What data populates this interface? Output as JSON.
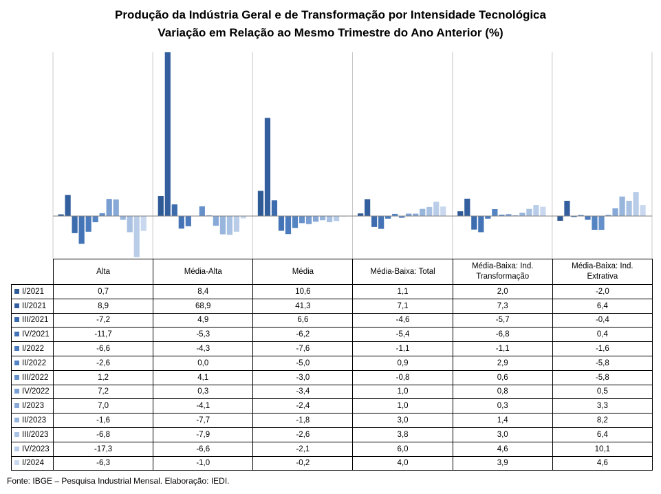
{
  "title_line1": "Produção da Indústria Geral e de Transformação por Intensidade Tecnológica",
  "title_line2": "Variação em Relação ao Mesmo Trimestre do Ano Anterior (%)",
  "source": "Fonte: IBGE – Pesquisa Industrial Mensal. Elaboração: IEDI.",
  "chart_data": {
    "type": "bar",
    "categories": [
      "Alta",
      "Média-Alta",
      "Média",
      "Média-Baixa: Total",
      "Média-Baixa: Ind. Transformação",
      "Média-Baixa: Ind. Extrativa"
    ],
    "periods": [
      "I/2021",
      "II/2021",
      "III/2021",
      "IV/2021",
      "I/2022",
      "II/2022",
      "III/2022",
      "IV/2022",
      "I/2023",
      "II/2023",
      "III/2023",
      "IV/2023",
      "I/2024"
    ],
    "series": [
      {
        "name": "I/2021",
        "color": "#2E5A96",
        "values": [
          0.7,
          8.4,
          10.6,
          1.1,
          2.0,
          -2.0
        ],
        "labels": [
          "0,7",
          "8,4",
          "10,6",
          "1,1",
          "2,0",
          "-2,0"
        ]
      },
      {
        "name": "II/2021",
        "color": "#345F9E",
        "values": [
          8.9,
          68.9,
          41.3,
          7.1,
          7.3,
          6.4
        ],
        "labels": [
          "8,9",
          "68,9",
          "41,3",
          "7,1",
          "7,3",
          "6,4"
        ]
      },
      {
        "name": "III/2021",
        "color": "#3D6CAE",
        "values": [
          -7.2,
          4.9,
          6.6,
          -4.6,
          -5.7,
          -0.4
        ],
        "labels": [
          "-7,2",
          "4,9",
          "6,6",
          "-4,6",
          "-5,7",
          "-0,4"
        ]
      },
      {
        "name": "IV/2021",
        "color": "#4474B6",
        "values": [
          -11.7,
          -5.3,
          -6.2,
          -5.4,
          -6.8,
          0.4
        ],
        "labels": [
          "-11,7",
          "-5,3",
          "-6,2",
          "-5,4",
          "-6,8",
          "0,4"
        ]
      },
      {
        "name": "I/2022",
        "color": "#4B7BBD",
        "values": [
          -6.6,
          -4.3,
          -7.6,
          -1.1,
          -1.1,
          -1.6
        ],
        "labels": [
          "-6,6",
          "-4,3",
          "-7,6",
          "-1,1",
          "-1,1",
          "-1,6"
        ]
      },
      {
        "name": "II/2022",
        "color": "#5584C3",
        "values": [
          -2.6,
          0.0,
          -5.0,
          0.9,
          2.9,
          -5.8
        ],
        "labels": [
          "-2,6",
          "0,0",
          "-5,0",
          "0,9",
          "2,9",
          "-5,8"
        ]
      },
      {
        "name": "III/2022",
        "color": "#6690CA",
        "values": [
          1.2,
          4.1,
          -3.0,
          -0.8,
          0.6,
          -5.8
        ],
        "labels": [
          "1,2",
          "4,1",
          "-3,0",
          "-0,8",
          "0,6",
          "-5,8"
        ]
      },
      {
        "name": "IV/2022",
        "color": "#789ED2",
        "values": [
          7.2,
          0.3,
          -3.4,
          1.0,
          0.8,
          0.5
        ],
        "labels": [
          "7,2",
          "0,3",
          "-3,4",
          "1,0",
          "0,8",
          "0,5"
        ]
      },
      {
        "name": "I/2023",
        "color": "#88A9D7",
        "values": [
          7.0,
          -4.1,
          -2.4,
          1.0,
          0.3,
          3.3
        ],
        "labels": [
          "7,0",
          "-4,1",
          "-2,4",
          "1,0",
          "0,3",
          "3,3"
        ]
      },
      {
        "name": "II/2023",
        "color": "#98B5DC",
        "values": [
          -1.6,
          -7.7,
          -1.8,
          3.0,
          1.4,
          8.2
        ],
        "labels": [
          "-1,6",
          "-7,7",
          "-1,8",
          "3,0",
          "1,4",
          "8,2"
        ]
      },
      {
        "name": "III/2023",
        "color": "#A9C1E2",
        "values": [
          -6.8,
          -7.9,
          -2.6,
          3.8,
          3.0,
          6.4
        ],
        "labels": [
          "-6,8",
          "-7,9",
          "-2,6",
          "3,8",
          "3,0",
          "6,4"
        ]
      },
      {
        "name": "IV/2023",
        "color": "#B9CDE8",
        "values": [
          -17.3,
          -6.6,
          -2.1,
          6.0,
          4.6,
          10.1
        ],
        "labels": [
          "-17,3",
          "-6,6",
          "-2,1",
          "6,0",
          "4,6",
          "10,1"
        ]
      },
      {
        "name": "I/2024",
        "color": "#C9D8EE",
        "values": [
          -6.3,
          -1.0,
          -0.2,
          4.0,
          3.9,
          4.6
        ],
        "labels": [
          "-6,3",
          "-1,0",
          "-0,2",
          "4,0",
          "3,9",
          "4,6"
        ]
      }
    ],
    "column_headers": [
      {
        "line1": "Alta",
        "line2": ""
      },
      {
        "line1": "Média-Alta",
        "line2": ""
      },
      {
        "line1": "Média",
        "line2": ""
      },
      {
        "line1": "Média-Baixa: Total",
        "line2": ""
      },
      {
        "line1": "Média-Baixa: Ind.",
        "line2": "Transformação"
      },
      {
        "line1": "Média-Baixa: Ind.",
        "line2": "Extrativa"
      }
    ],
    "ylim": [
      -17.3,
      68.9
    ],
    "grid": false,
    "legend": "table"
  }
}
